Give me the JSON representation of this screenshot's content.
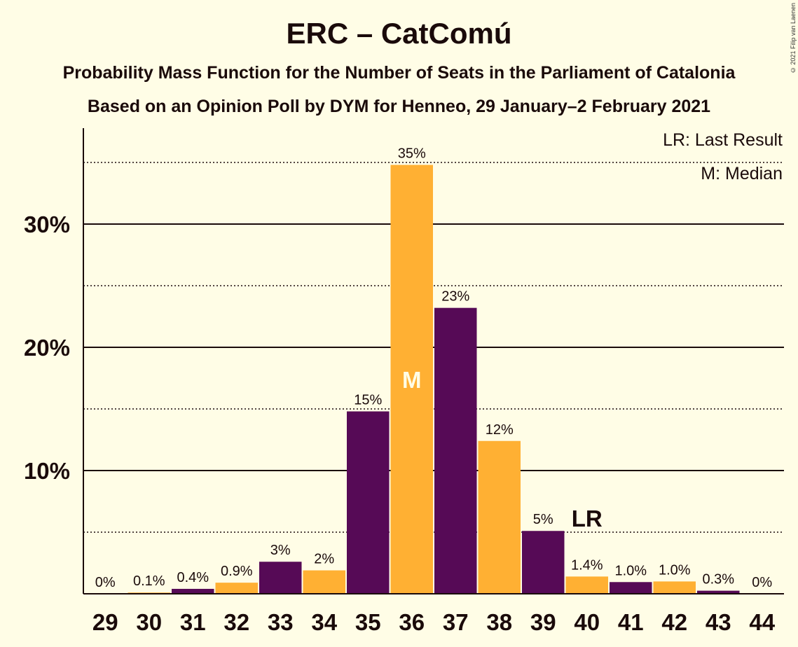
{
  "chart_data": {
    "type": "bar",
    "title": "ERC – CatComú",
    "subtitle": "Probability Mass Function for the Number of Seats in the Parliament of Catalonia",
    "subtitle2": "Based on an Opinion Poll by DYM for Henneo, 29 January–2 February 2021",
    "copyright": "© 2021 Filip van Laenen",
    "categories": [
      "29",
      "30",
      "31",
      "32",
      "33",
      "34",
      "35",
      "36",
      "37",
      "38",
      "39",
      "40",
      "41",
      "42",
      "43",
      "44"
    ],
    "values": [
      0,
      0.1,
      0.4,
      0.9,
      2.6,
      1.9,
      14.8,
      34.8,
      23.2,
      12.4,
      5.1,
      1.4,
      0.95,
      1.0,
      0.25,
      0
    ],
    "labels": [
      "0%",
      "0.1%",
      "0.4%",
      "0.9%",
      "3%",
      "2%",
      "15%",
      "35%",
      "23%",
      "12%",
      "5%",
      "1.4%",
      "1.0%",
      "1.0%",
      "0.3%",
      "0%"
    ],
    "yticks": [
      10,
      20,
      30
    ],
    "ytick_labels": [
      "10%",
      "20%",
      "30%"
    ],
    "ylim": [
      0,
      38
    ],
    "grid": "solid lines at 10% steps, dotted lines at 5% offsets",
    "median_index": 7,
    "median_label": "M",
    "last_result_index": 11,
    "last_result_label": "LR",
    "legend": [
      "LR: Last Result",
      "M: Median"
    ],
    "legend_position": "top-right",
    "colors": {
      "purple": "#560a56",
      "orange": "#ffb033",
      "background": "#fffde6"
    }
  }
}
